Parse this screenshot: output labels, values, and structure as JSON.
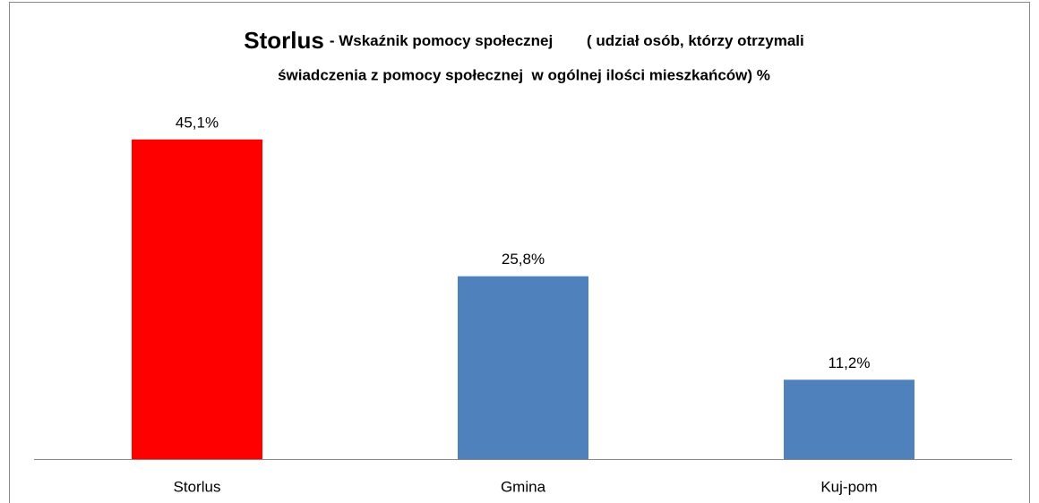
{
  "chart_data": {
    "type": "bar",
    "title": [
      "Storlus",
      "- Wskaźnik pomocy społecznej        ( udział osób, którzy otrzymali",
      "świadczenia z pomocy społecznej  w ogólnej ilości mieszkańców) %"
    ],
    "categories": [
      "Storlus",
      "Gmina",
      "Kuj-pom"
    ],
    "values": [
      45.1,
      25.8,
      11.2
    ],
    "value_labels": [
      "45,1%",
      "25,8%",
      "11,2%"
    ],
    "colors": [
      "#ff0000",
      "#4f81bd",
      "#4f81bd"
    ]
  }
}
